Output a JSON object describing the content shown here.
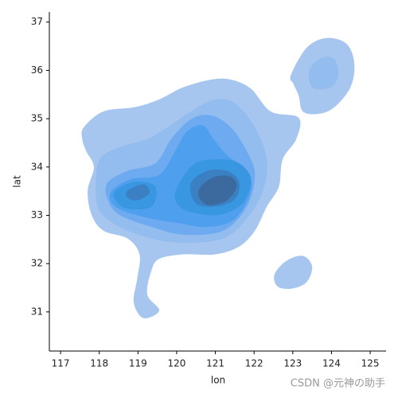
{
  "chart_data": {
    "type": "kde",
    "x_label": "lon",
    "y_label": "lat",
    "xlim": [
      116.71,
      125.41
    ],
    "xticks": [
      117,
      118,
      119,
      120,
      121,
      122,
      123,
      124,
      125
    ],
    "ylim": [
      30.19,
      37.21
    ],
    "yticks": [
      31,
      32,
      33,
      34,
      35,
      36,
      37
    ],
    "levels": [
      {
        "color": "#a7c6ef",
        "polygons": [
          {
            "x": [
              117.6,
              118.11,
              118.93,
              119.55,
              120.17,
              120.89,
              121.4,
              121.92,
              122.43,
              123.15,
              123.09,
              122.74,
              122.64,
              122.33,
              122.02,
              121.61,
              120.99,
              120.17,
              119.55,
              119.35,
              119.24,
              119.55,
              119.14,
              118.89,
              118.98,
              119.04,
              118.73,
              118.11,
              117.8,
              117.7,
              117.86,
              117.66,
              117.56
            ],
            "y": [
              34.82,
              35.15,
              35.24,
              35.4,
              35.65,
              35.81,
              35.81,
              35.62,
              35.15,
              35.02,
              34.58,
              34.16,
              33.59,
              33.18,
              32.68,
              32.35,
              32.19,
              32.19,
              32.1,
              31.86,
              31.36,
              31.03,
              30.87,
              31.2,
              31.69,
              32.19,
              32.52,
              32.68,
              33.01,
              33.51,
              34.0,
              34.33,
              34.58
            ]
          },
          {
            "x": [
              122.95,
              123.36,
              123.87,
              124.39,
              124.59,
              124.49,
              124.08,
              123.67,
              123.26,
              123.15,
              123.01
            ],
            "y": [
              35.9,
              36.47,
              36.67,
              36.55,
              36.14,
              35.65,
              35.24,
              35.1,
              35.15,
              35.48,
              35.73
            ]
          },
          {
            "x": [
              122.53,
              122.84,
              123.26,
              123.5,
              123.35,
              122.95,
              122.6
            ],
            "y": [
              31.78,
              32.06,
              32.16,
              31.94,
              31.61,
              31.48,
              31.53
            ]
          }
        ]
      },
      {
        "color": "#93bcef",
        "polygons": [
          {
            "x": [
              118.01,
              118.52,
              119.24,
              119.76,
              120.37,
              120.99,
              121.51,
              122.02,
              122.33,
              122.23,
              121.81,
              121.2,
              120.17,
              119.35,
              118.52,
              118.01,
              117.91
            ],
            "y": [
              34.16,
              34.41,
              34.58,
              34.82,
              35.15,
              35.4,
              35.32,
              34.82,
              34.16,
              33.51,
              32.93,
              32.52,
              32.43,
              32.52,
              32.76,
              33.09,
              33.59
            ]
          },
          {
            "x": [
              123.46,
              123.77,
              124.08,
              124.18,
              123.98,
              123.56,
              123.42
            ],
            "y": [
              36.06,
              36.27,
              36.23,
              35.9,
              35.65,
              35.62,
              35.81
            ]
          }
        ]
      },
      {
        "color": "#6eaaf0",
        "polygons": [
          {
            "x": [
              118.21,
              118.73,
              119.45,
              119.86,
              120.37,
              120.89,
              121.4,
              121.81,
              122.02,
              121.81,
              121.2,
              120.17,
              119.35,
              118.52,
              118.21
            ],
            "y": [
              33.67,
              33.92,
              34.08,
              34.58,
              34.99,
              35.07,
              34.82,
              34.33,
              33.84,
              33.18,
              32.68,
              32.6,
              32.76,
              33.01,
              33.34
            ]
          }
        ]
      },
      {
        "color": "#4ea0ee",
        "polygons": [
          {
            "x": [
              118.32,
              118.83,
              119.55,
              119.96,
              120.27,
              120.68,
              120.95,
              121.3,
              121.81,
              121.92,
              121.51,
              120.79,
              119.96,
              119.35,
              118.63,
              118.32
            ],
            "y": [
              33.51,
              33.75,
              33.84,
              34.33,
              34.74,
              34.86,
              34.58,
              34.25,
              33.92,
              33.51,
              32.93,
              32.76,
              32.85,
              32.93,
              33.09,
              33.26
            ]
          }
        ]
      },
      {
        "color": "#3996e0",
        "polygons": [
          {
            "x": [
              118.42,
              118.93,
              119.45,
              119.35,
              118.73,
              118.42
            ],
            "y": [
              33.51,
              33.7,
              33.59,
              33.18,
              33.14,
              33.31
            ]
          },
          {
            "x": [
              120.07,
              120.48,
              121.09,
              121.61,
              121.92,
              121.71,
              121.09,
              120.27,
              119.96
            ],
            "y": [
              33.67,
              34.08,
              34.16,
              34.08,
              33.75,
              33.26,
              33.01,
              33.09,
              33.34
            ]
          }
        ]
      },
      {
        "color": "#3a80c2",
        "polygons": [
          {
            "x": [
              118.73,
              119.14,
              119.3,
              118.98,
              118.73
            ],
            "y": [
              33.51,
              33.64,
              33.46,
              33.31,
              33.37
            ]
          },
          {
            "x": [
              120.37,
              120.79,
              121.3,
              121.61,
              121.51,
              120.99,
              120.48
            ],
            "y": [
              33.67,
              33.92,
              33.92,
              33.7,
              33.34,
              33.18,
              33.26
            ]
          }
        ]
      },
      {
        "color": "#3c6a9e",
        "polygons": [
          {
            "x": [
              120.62,
              120.99,
              121.4,
              121.55,
              121.3,
              120.83,
              120.58
            ],
            "y": [
              33.59,
              33.8,
              33.8,
              33.59,
              33.31,
              33.21,
              33.37
            ]
          }
        ]
      }
    ],
    "watermark": "CSDN @元神の助手"
  }
}
